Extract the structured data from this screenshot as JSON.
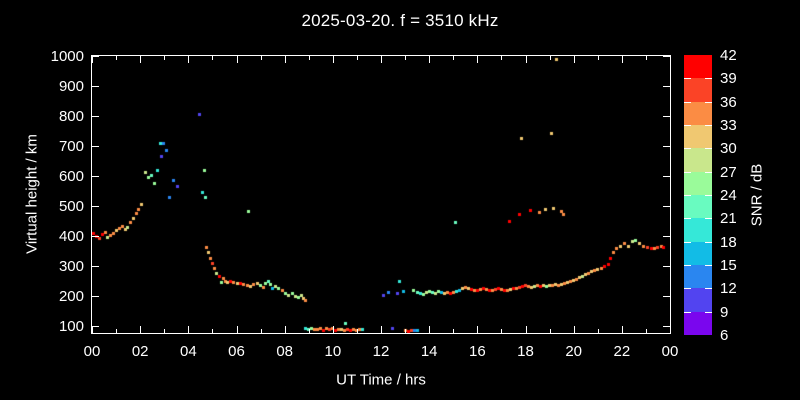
{
  "title": "2025-03-20. f = 3510 kHz",
  "x_axis": {
    "label": "UT Time / hrs",
    "min": 0,
    "max": 24,
    "minor_step": 1,
    "major_step": 2,
    "tick_labels": [
      "00",
      "02",
      "04",
      "06",
      "08",
      "10",
      "12",
      "14",
      "16",
      "18",
      "20",
      "22",
      "00"
    ]
  },
  "y_axis": {
    "label": "Virtual height / km",
    "min": 77,
    "max": 1000,
    "tick_values": [
      1000,
      900,
      800,
      700,
      600,
      500,
      400,
      300,
      200,
      100
    ],
    "tick_labels": [
      "1000",
      "900",
      "800",
      "700",
      "600",
      "500",
      "400",
      "300",
      "200",
      "100"
    ]
  },
  "colorbar": {
    "label": "SNR / dB",
    "min": 6,
    "max": 42,
    "tick_labels": [
      "42",
      "39",
      "36",
      "33",
      "30",
      "27",
      "24",
      "21",
      "18",
      "15",
      "12",
      "9",
      "6"
    ],
    "colors_bottom_to_top": [
      "#7A06EE",
      "#5244F0",
      "#2A86F0",
      "#12BCE6",
      "#35E8D8",
      "#69FBC0",
      "#9AFB9A",
      "#C9E78C",
      "#F0C871",
      "#FB8C44",
      "#FB4326",
      "#FF0000"
    ]
  },
  "chart_data": {
    "type": "scatter",
    "title": "2025-03-20. f = 3510 kHz",
    "xlabel": "UT Time / hrs",
    "ylabel": "Virtual height / km",
    "color_label": "SNR / dB",
    "xlim": [
      0,
      24
    ],
    "ylim": [
      77,
      1000
    ],
    "snr_lim": [
      6,
      42
    ],
    "grid": false,
    "point_format": [
      "time_hours_UT",
      "virtual_height_km",
      "snr_dB"
    ],
    "points": [
      [
        0.04,
        410,
        40
      ],
      [
        0.17,
        400,
        40
      ],
      [
        0.29,
        393,
        37
      ],
      [
        0.41,
        407,
        40
      ],
      [
        0.54,
        413,
        34
      ],
      [
        0.62,
        397,
        28
      ],
      [
        0.75,
        403,
        34
      ],
      [
        0.87,
        410,
        34
      ],
      [
        1.0,
        420,
        31
      ],
      [
        1.12,
        427,
        34
      ],
      [
        1.24,
        433,
        34
      ],
      [
        1.37,
        423,
        31
      ],
      [
        1.45,
        430,
        28
      ],
      [
        1.58,
        447,
        34
      ],
      [
        1.7,
        460,
        31
      ],
      [
        1.83,
        477,
        34
      ],
      [
        1.91,
        490,
        34
      ],
      [
        2.03,
        507,
        31
      ],
      [
        2.2,
        613,
        28
      ],
      [
        2.32,
        597,
        25
      ],
      [
        2.45,
        603,
        22
      ],
      [
        2.57,
        577,
        25
      ],
      [
        2.7,
        620,
        19
      ],
      [
        2.82,
        710,
        19
      ],
      [
        2.95,
        710,
        13
      ],
      [
        2.86,
        667,
        10
      ],
      [
        3.07,
        687,
        13
      ],
      [
        3.2,
        530,
        13
      ],
      [
        3.36,
        587,
        13
      ],
      [
        3.53,
        567,
        10
      ],
      [
        4.44,
        807,
        10
      ],
      [
        4.56,
        547,
        19
      ],
      [
        4.65,
        620,
        25
      ],
      [
        4.69,
        530,
        22
      ],
      [
        4.73,
        363,
        34
      ],
      [
        4.81,
        347,
        31
      ],
      [
        4.9,
        327,
        34
      ],
      [
        4.98,
        310,
        37
      ],
      [
        5.06,
        293,
        34
      ],
      [
        5.15,
        277,
        28
      ],
      [
        5.27,
        267,
        40
      ],
      [
        5.35,
        247,
        25
      ],
      [
        5.44,
        260,
        34
      ],
      [
        5.52,
        250,
        34
      ],
      [
        5.6,
        247,
        31
      ],
      [
        5.73,
        250,
        40
      ],
      [
        5.85,
        247,
        34
      ],
      [
        6.02,
        243,
        31
      ],
      [
        6.14,
        243,
        40
      ],
      [
        6.27,
        240,
        34
      ],
      [
        6.43,
        237,
        34
      ],
      [
        6.56,
        233,
        31
      ],
      [
        6.68,
        240,
        34
      ],
      [
        6.85,
        243,
        31
      ],
      [
        6.97,
        237,
        25
      ],
      [
        7.1,
        230,
        34
      ],
      [
        7.18,
        243,
        25
      ],
      [
        7.3,
        250,
        22
      ],
      [
        7.39,
        240,
        25
      ],
      [
        7.47,
        227,
        16
      ],
      [
        7.59,
        233,
        28
      ],
      [
        7.72,
        227,
        25
      ],
      [
        7.88,
        220,
        34
      ],
      [
        8.01,
        210,
        25
      ],
      [
        8.13,
        203,
        28
      ],
      [
        8.3,
        210,
        25
      ],
      [
        8.42,
        200,
        28
      ],
      [
        8.55,
        197,
        25
      ],
      [
        8.67,
        203,
        28
      ],
      [
        8.76,
        193,
        31
      ],
      [
        8.84,
        187,
        34
      ],
      [
        6.47,
        483,
        25
      ],
      [
        8.84,
        93,
        19
      ],
      [
        8.96,
        90,
        22
      ],
      [
        9.09,
        93,
        25
      ],
      [
        9.21,
        90,
        34
      ],
      [
        9.34,
        90,
        34
      ],
      [
        9.46,
        93,
        34
      ],
      [
        9.59,
        87,
        40
      ],
      [
        9.71,
        93,
        34
      ],
      [
        9.83,
        90,
        37
      ],
      [
        9.96,
        93,
        34
      ],
      [
        10.08,
        87,
        40
      ],
      [
        10.21,
        90,
        34
      ],
      [
        10.33,
        90,
        31
      ],
      [
        10.5,
        110,
        22
      ],
      [
        10.46,
        87,
        34
      ],
      [
        10.58,
        90,
        37
      ],
      [
        10.71,
        87,
        40
      ],
      [
        10.83,
        90,
        34
      ],
      [
        10.95,
        87,
        34
      ],
      [
        11.08,
        90,
        34
      ],
      [
        11.2,
        90,
        19
      ],
      [
        12.45,
        93,
        10
      ],
      [
        12.99,
        87,
        34
      ],
      [
        13.11,
        83,
        40
      ],
      [
        13.24,
        87,
        37
      ],
      [
        13.36,
        87,
        13
      ],
      [
        13.49,
        87,
        16
      ],
      [
        12.07,
        203,
        10
      ],
      [
        12.28,
        213,
        13
      ],
      [
        12.66,
        210,
        10
      ],
      [
        12.74,
        250,
        19
      ],
      [
        12.9,
        217,
        16
      ],
      [
        13.32,
        220,
        25
      ],
      [
        13.49,
        213,
        22
      ],
      [
        13.61,
        210,
        19
      ],
      [
        13.73,
        207,
        25
      ],
      [
        13.86,
        213,
        28
      ],
      [
        13.98,
        217,
        25
      ],
      [
        14.11,
        213,
        22
      ],
      [
        14.23,
        210,
        28
      ],
      [
        14.36,
        217,
        25
      ],
      [
        14.48,
        213,
        16
      ],
      [
        14.61,
        210,
        31
      ],
      [
        14.73,
        213,
        34
      ],
      [
        14.85,
        210,
        40
      ],
      [
        14.98,
        213,
        34
      ],
      [
        15.1,
        217,
        19
      ],
      [
        15.23,
        220,
        16
      ],
      [
        15.35,
        227,
        31
      ],
      [
        15.48,
        230,
        34
      ],
      [
        15.6,
        227,
        31
      ],
      [
        15.73,
        223,
        40
      ],
      [
        15.85,
        220,
        34
      ],
      [
        15.98,
        220,
        40
      ],
      [
        16.1,
        223,
        34
      ],
      [
        16.22,
        227,
        40
      ],
      [
        16.35,
        223,
        34
      ],
      [
        16.47,
        220,
        40
      ],
      [
        16.6,
        220,
        34
      ],
      [
        16.72,
        223,
        37
      ],
      [
        16.85,
        227,
        40
      ],
      [
        16.97,
        223,
        34
      ],
      [
        17.1,
        220,
        40
      ],
      [
        17.22,
        220,
        34
      ],
      [
        17.34,
        223,
        31
      ],
      [
        17.47,
        227,
        40
      ],
      [
        17.59,
        227,
        34
      ],
      [
        17.72,
        230,
        37
      ],
      [
        17.84,
        233,
        40
      ],
      [
        17.97,
        237,
        37
      ],
      [
        18.09,
        233,
        34
      ],
      [
        18.22,
        230,
        31
      ],
      [
        18.34,
        233,
        28
      ],
      [
        18.46,
        237,
        34
      ],
      [
        18.59,
        233,
        40
      ],
      [
        18.71,
        237,
        31
      ],
      [
        18.84,
        233,
        25
      ],
      [
        18.96,
        237,
        31
      ],
      [
        19.09,
        237,
        34
      ],
      [
        19.21,
        240,
        31
      ],
      [
        19.34,
        237,
        34
      ],
      [
        19.46,
        240,
        31
      ],
      [
        19.58,
        243,
        34
      ],
      [
        19.71,
        247,
        31
      ],
      [
        19.83,
        250,
        34
      ],
      [
        19.96,
        253,
        31
      ],
      [
        20.08,
        257,
        34
      ],
      [
        20.21,
        263,
        31
      ],
      [
        20.33,
        267,
        28
      ],
      [
        20.46,
        273,
        31
      ],
      [
        20.58,
        277,
        34
      ],
      [
        20.71,
        283,
        31
      ],
      [
        20.83,
        287,
        34
      ],
      [
        20.95,
        290,
        31
      ],
      [
        21.12,
        293,
        34
      ],
      [
        21.24,
        300,
        40
      ],
      [
        21.41,
        307,
        40
      ],
      [
        21.49,
        327,
        40
      ],
      [
        21.62,
        347,
        34
      ],
      [
        21.74,
        360,
        34
      ],
      [
        21.91,
        367,
        31
      ],
      [
        22.07,
        377,
        34
      ],
      [
        22.24,
        367,
        31
      ],
      [
        22.41,
        383,
        28
      ],
      [
        22.53,
        387,
        25
      ],
      [
        22.7,
        377,
        31
      ],
      [
        22.86,
        367,
        34
      ],
      [
        23.03,
        363,
        37
      ],
      [
        23.2,
        360,
        40
      ],
      [
        23.32,
        360,
        34
      ],
      [
        23.44,
        363,
        37
      ],
      [
        23.61,
        367,
        34
      ],
      [
        23.73,
        363,
        40
      ],
      [
        15.06,
        447,
        22
      ],
      [
        17.3,
        450,
        40
      ],
      [
        17.72,
        473,
        40
      ],
      [
        18.17,
        487,
        40
      ],
      [
        18.55,
        480,
        34
      ],
      [
        18.8,
        490,
        31
      ],
      [
        19.13,
        493,
        31
      ],
      [
        19.46,
        483,
        34
      ],
      [
        19.54,
        473,
        34
      ],
      [
        17.8,
        727,
        31
      ],
      [
        19.05,
        743,
        31
      ],
      [
        19.25,
        990,
        31
      ]
    ]
  }
}
